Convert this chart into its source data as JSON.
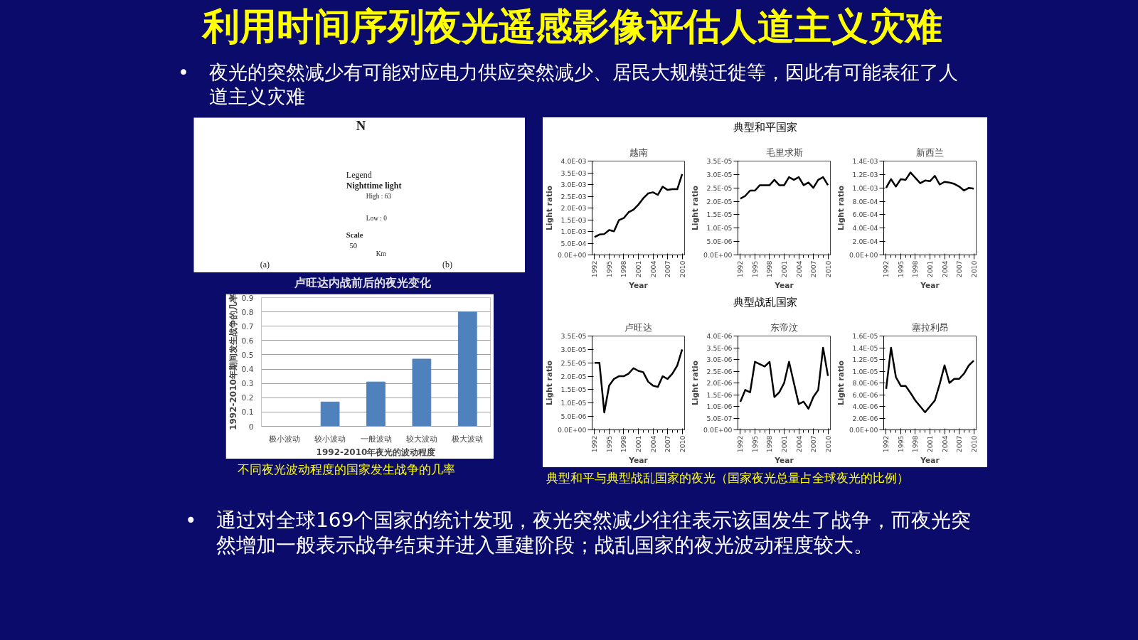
{
  "chart_data": [
    {
      "type": "other",
      "title": "利用时间序列夜光遥感影像评估人道主义灾难",
      "annotations": [
        "•",
        "夜光的突然减少有可能对应电力供应突然减少、居民大规模迁徙等，因此有可能表征了人道主义灾难",
        "•",
        "通过对全球169个国家的统计发现，夜光突然减少往往表示该国发生了战争，而夜光突然增加一般表示战争结束并进入重建阶段；战乱国家的夜光波动程度较大。"
      ]
    },
    {
      "type": "other",
      "title": "卢旺达内战前后的夜光变化",
      "annotations": [
        "N",
        "Legend",
        "Nighttime light",
        "High : 63",
        "Low : 0",
        "Scale",
        "50",
        "Km",
        "(a)",
        "(b)"
      ]
    },
    {
      "type": "bar",
      "xlabel": "1992-2010年夜光的波动程度",
      "ylabel": "1992-2010年期间发生战争的几率",
      "categories": [
        "极小波动",
        "较小波动",
        "一般波动",
        "较大波动",
        "极大波动"
      ],
      "values": [
        0,
        0.17,
        0.31,
        0.47,
        0.8
      ],
      "color": "#4f81bd",
      "ylim": [
        0,
        0.9
      ],
      "yticks": [
        0,
        0.1,
        0.2,
        0.3,
        0.4,
        0.5,
        0.6,
        0.7,
        0.8,
        0.9
      ],
      "grid": "y",
      "annotations": [
        "不同夜光波动程度的国家发生战争的几率"
      ]
    },
    {
      "type": "other",
      "title": "典型和平国家"
    },
    {
      "type": "line",
      "title": "越南",
      "xlabel": "Year",
      "ylabel": "Light ratio",
      "x": [
        1992,
        1993,
        1994,
        1995,
        1996,
        1997,
        1998,
        1999,
        2000,
        2001,
        2002,
        2003,
        2004,
        2005,
        2006,
        2007,
        2008,
        2009,
        2010
      ],
      "xlim": [
        1991.5,
        2010.5
      ],
      "xticks": [
        1992,
        1995,
        1998,
        2001,
        2004,
        2007,
        2010
      ],
      "ylim": [
        0,
        0.004
      ],
      "yticks": [
        {
          "value": 0,
          "label": "0.0E+00"
        },
        {
          "value": 0.0005,
          "label": "5.0E-04"
        },
        {
          "value": 0.001,
          "label": "1.0E-03"
        },
        {
          "value": 0.0015,
          "label": "1.5E-03"
        },
        {
          "value": 0.002,
          "label": "2.0E-03"
        },
        {
          "value": 0.0025,
          "label": "2.5E-03"
        },
        {
          "value": 0.003,
          "label": "3.0E-03"
        },
        {
          "value": 0.0035,
          "label": "3.5E-03"
        },
        {
          "value": 0.004,
          "label": "4.0E-03"
        }
      ],
      "series": [
        {
          "color": "#000000",
          "values": [
            0.00076,
            0.00087,
            0.00089,
            0.00106,
            0.00101,
            0.00148,
            0.00157,
            0.00182,
            0.00193,
            0.00214,
            0.00241,
            0.00262,
            0.00267,
            0.00256,
            0.00291,
            0.00277,
            0.0028,
            0.0028,
            0.00344
          ]
        }
      ]
    },
    {
      "type": "line",
      "title": "毛里求斯",
      "xlabel": "Year",
      "ylabel": "Light ratio",
      "x": [
        1992,
        1993,
        1994,
        1995,
        1996,
        1997,
        1998,
        1999,
        2000,
        2001,
        2002,
        2003,
        2004,
        2005,
        2006,
        2007,
        2008,
        2009,
        2010
      ],
      "xlim": [
        1991.5,
        2010.5
      ],
      "xticks": [
        1992,
        1995,
        1998,
        2001,
        2004,
        2007,
        2010
      ],
      "ylim": [
        0,
        3.5e-05
      ],
      "yticks": [
        {
          "value": 0,
          "label": "0.0E+00"
        },
        {
          "value": 5e-06,
          "label": "5.0E-06"
        },
        {
          "value": 1e-05,
          "label": "1.0E-05"
        },
        {
          "value": 1.5e-05,
          "label": "1.5E-05"
        },
        {
          "value": 2e-05,
          "label": "2.0E-05"
        },
        {
          "value": 2.5e-05,
          "label": "2.5E-05"
        },
        {
          "value": 3e-05,
          "label": "3.0E-05"
        },
        {
          "value": 3.5e-05,
          "label": "3.5E-05"
        }
      ],
      "series": [
        {
          "color": "#000000",
          "values": [
            2.1e-05,
            2.2e-05,
            2.4e-05,
            2.4e-05,
            2.6e-05,
            2.6e-05,
            2.6e-05,
            2.8e-05,
            2.6e-05,
            2.6e-05,
            2.9e-05,
            2.8e-05,
            2.9e-05,
            2.6e-05,
            2.7e-05,
            2.5e-05,
            2.8e-05,
            2.9e-05,
            2.6e-05
          ]
        }
      ]
    },
    {
      "type": "line",
      "title": "新西兰",
      "xlabel": "Year",
      "ylabel": "Light ratio",
      "x": [
        1992,
        1993,
        1994,
        1995,
        1996,
        1997,
        1998,
        1999,
        2000,
        2001,
        2002,
        2003,
        2004,
        2005,
        2006,
        2007,
        2008,
        2009,
        2010
      ],
      "xlim": [
        1991.5,
        2010.5
      ],
      "xticks": [
        1992,
        1995,
        1998,
        2001,
        2004,
        2007,
        2010
      ],
      "ylim": [
        0,
        0.0014
      ],
      "yticks": [
        {
          "value": 0,
          "label": "0.0E+00"
        },
        {
          "value": 0.0002,
          "label": "2.0E-04"
        },
        {
          "value": 0.0004,
          "label": "4.0E-04"
        },
        {
          "value": 0.0006,
          "label": "6.0E-04"
        },
        {
          "value": 0.0008,
          "label": "8.0E-04"
        },
        {
          "value": 0.001,
          "label": "1.0E-03"
        },
        {
          "value": 0.0012,
          "label": "1.2E-03"
        },
        {
          "value": 0.0014,
          "label": "1.4E-03"
        }
      ],
      "series": [
        {
          "color": "#000000",
          "values": [
            0.001,
            0.00113,
            0.00102,
            0.00113,
            0.00112,
            0.00123,
            0.00115,
            0.00107,
            0.00111,
            0.0011,
            0.00118,
            0.00105,
            0.00109,
            0.00108,
            0.00106,
            0.00102,
            0.00096,
            0.001,
            0.00099
          ]
        }
      ]
    },
    {
      "type": "other",
      "title": "典型战乱国家",
      "annotations": [
        "典型和平与典型战乱国家的夜光（国家夜光总量占全球夜光的比例）"
      ]
    },
    {
      "type": "line",
      "title": "卢旺达",
      "xlabel": "Year",
      "ylabel": "Light ratio",
      "x": [
        1992,
        1993,
        1994,
        1995,
        1996,
        1997,
        1998,
        1999,
        2000,
        2001,
        2002,
        2003,
        2004,
        2005,
        2006,
        2007,
        2008,
        2009,
        2010
      ],
      "xlim": [
        1991.5,
        2010.5
      ],
      "xticks": [
        1992,
        1995,
        1998,
        2001,
        2004,
        2007,
        2010
      ],
      "ylim": [
        0,
        3.5e-05
      ],
      "yticks": [
        {
          "value": 0,
          "label": "0.0E+00"
        },
        {
          "value": 5e-06,
          "label": "5.0E-06"
        },
        {
          "value": 1e-05,
          "label": "1.0E-05"
        },
        {
          "value": 1.5e-05,
          "label": "1.5E-05"
        },
        {
          "value": 2e-05,
          "label": "2.0E-05"
        },
        {
          "value": 2.5e-05,
          "label": "2.5E-05"
        },
        {
          "value": 3e-05,
          "label": "3.0E-05"
        },
        {
          "value": 3.5e-05,
          "label": "3.5E-05"
        }
      ],
      "series": [
        {
          "color": "#000000",
          "values": [
            2.5e-05,
            2.5e-05,
            6.5e-06,
            1.65e-05,
            1.9e-05,
            2e-05,
            2e-05,
            2.1e-05,
            2.3e-05,
            2.2e-05,
            2.15e-05,
            1.8e-05,
            1.65e-05,
            1.6e-05,
            2e-05,
            1.9e-05,
            2.1e-05,
            2.4e-05,
            3e-05
          ]
        }
      ]
    },
    {
      "type": "line",
      "title": "东帝汶",
      "xlabel": "Year",
      "ylabel": "Light ratio",
      "x": [
        1992,
        1993,
        1994,
        1995,
        1996,
        1997,
        1998,
        1999,
        2000,
        2001,
        2002,
        2003,
        2004,
        2005,
        2006,
        2007,
        2008,
        2009,
        2010
      ],
      "xlim": [
        1991.5,
        2010.5
      ],
      "xticks": [
        1992,
        1995,
        1998,
        2001,
        2004,
        2007,
        2010
      ],
      "ylim": [
        0,
        4e-06
      ],
      "yticks": [
        {
          "value": 0,
          "label": "0.0E+00"
        },
        {
          "value": 5e-07,
          "label": "5.0E-07"
        },
        {
          "value": 1e-06,
          "label": "1.0E-06"
        },
        {
          "value": 1.5e-06,
          "label": "1.5E-06"
        },
        {
          "value": 2e-06,
          "label": "2.0E-06"
        },
        {
          "value": 2.5e-06,
          "label": "2.5E-06"
        },
        {
          "value": 3e-06,
          "label": "3.0E-06"
        },
        {
          "value": 3.5e-06,
          "label": "3.5E-06"
        },
        {
          "value": 4e-06,
          "label": "4.0E-06"
        }
      ],
      "series": [
        {
          "color": "#000000",
          "values": [
            1.2e-06,
            1.7e-06,
            1.6e-06,
            2.9e-06,
            2.8e-06,
            2.7e-06,
            2.9e-06,
            1.4e-06,
            1.6e-06,
            2e-06,
            2.9e-06,
            2e-06,
            1.1e-06,
            1.2e-06,
            9e-07,
            1.4e-06,
            1.7e-06,
            3.5e-06,
            2.3e-06
          ]
        }
      ]
    },
    {
      "type": "line",
      "title": "塞拉利昂",
      "xlabel": "Year",
      "ylabel": "Light ratio",
      "x": [
        1992,
        1993,
        1994,
        1995,
        1996,
        1997,
        1998,
        1999,
        2000,
        2001,
        2002,
        2003,
        2004,
        2005,
        2006,
        2007,
        2008,
        2009,
        2010
      ],
      "xlim": [
        1991.5,
        2010.5
      ],
      "xticks": [
        1992,
        1995,
        1998,
        2001,
        2004,
        2007,
        2010
      ],
      "ylim": [
        0,
        1.6e-05
      ],
      "yticks": [
        {
          "value": 0,
          "label": "0.0E+00"
        },
        {
          "value": 2e-06,
          "label": "2.0E-06"
        },
        {
          "value": 4e-06,
          "label": "4.0E-06"
        },
        {
          "value": 6e-06,
          "label": "6.0E-06"
        },
        {
          "value": 8e-06,
          "label": "8.0E-06"
        },
        {
          "value": 1e-05,
          "label": "1.0E-05"
        },
        {
          "value": 1.2e-05,
          "label": "1.2E-05"
        },
        {
          "value": 1.4e-05,
          "label": "1.4E-05"
        },
        {
          "value": 1.6e-05,
          "label": "1.6E-05"
        }
      ],
      "series": [
        {
          "color": "#000000",
          "values": [
            7e-06,
            1.4e-05,
            9e-06,
            7.5e-06,
            7.5e-06,
            6.3e-06,
            5e-06,
            4e-06,
            3e-06,
            4e-06,
            5e-06,
            7.8e-06,
            1.1e-05,
            8e-06,
            8.7e-06,
            8.7e-06,
            9.6e-06,
            1.1e-05,
            1.18e-05
          ]
        }
      ]
    }
  ]
}
